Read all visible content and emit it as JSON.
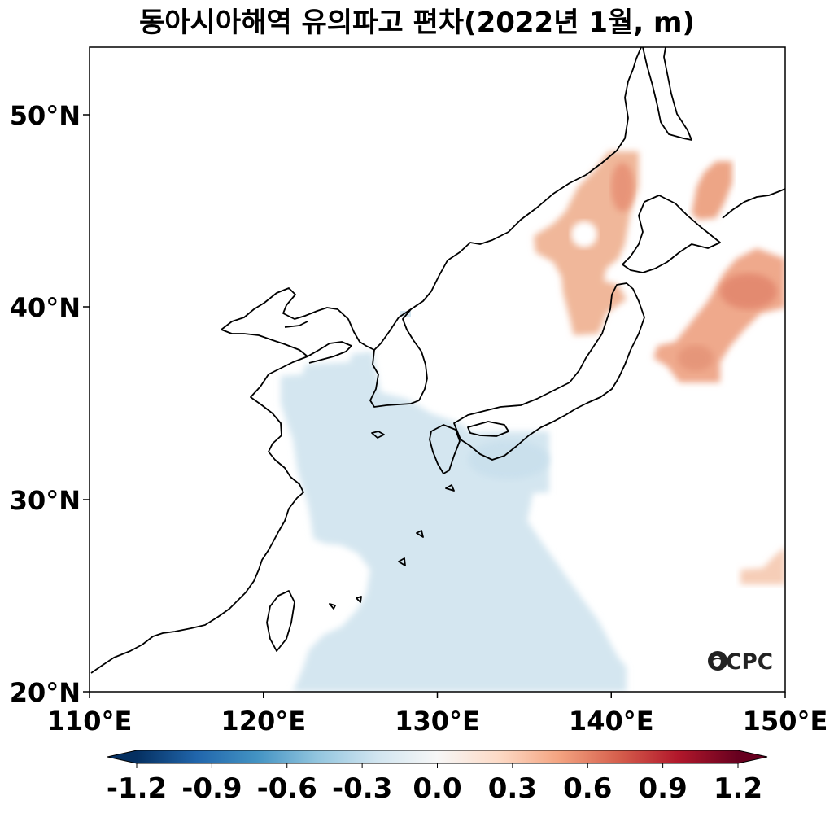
{
  "title": "동아시아해역 유의파고 편차(2022년 1월, m)",
  "logo_text": "OCPC",
  "lon_labels": [
    "110°E",
    "120°E",
    "130°E",
    "140°E",
    "150°E"
  ],
  "lat_labels": [
    "20°N",
    "30°N",
    "40°N",
    "50°N"
  ],
  "colorbar": {
    "ticks": [
      "-1.2",
      "-0.9",
      "-0.6",
      "-0.3",
      "0.0",
      "0.3",
      "0.6",
      "0.9",
      "1.2"
    ],
    "range": [
      -1.2,
      1.2
    ],
    "extend": "both",
    "colormap": "RdBu_r"
  },
  "colors": {
    "negative_anomaly": "#d3e6f0",
    "positive_anomaly": "#eeab8e",
    "positive_core": "#e2876a",
    "land_outline": "#000000"
  },
  "map_extent": {
    "lon": [
      110,
      150
    ],
    "lat": [
      20,
      53.5
    ]
  },
  "anomaly_regions": [
    {
      "label": "positive",
      "value": 0.45,
      "location": "Sea of Japan / Tatar Strait"
    },
    {
      "label": "positive",
      "value": 0.5,
      "location": "Sea of Okhotsk south"
    },
    {
      "label": "positive",
      "value": 0.55,
      "location": "NW Pacific off Hokkaido"
    },
    {
      "label": "positive",
      "value": 0.25,
      "location": "Pacific east of Ryukyu (~26°N)"
    },
    {
      "label": "negative",
      "value": -0.15,
      "location": "Yellow Sea / East China Sea / Ryukyu"
    }
  ]
}
